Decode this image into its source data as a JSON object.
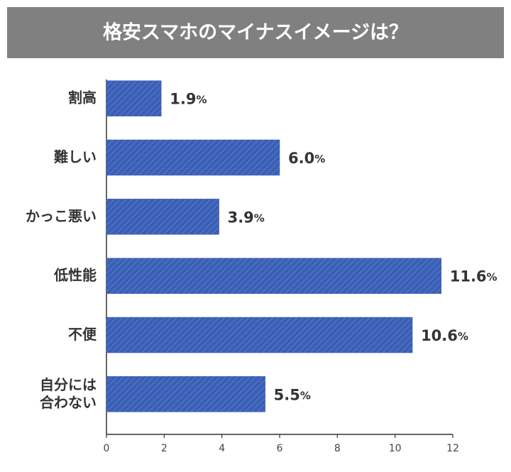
{
  "chart_data": {
    "type": "hbar",
    "title": "格安スマホのマイナスイメージは？",
    "categories": [
      "割高",
      "難しい",
      "かっこ悪い",
      "低性能",
      "不便",
      "自分には\n合わない"
    ],
    "values": [
      1.9,
      6.0,
      3.9,
      11.6,
      10.6,
      5.5
    ],
    "value_labels": [
      "1.9%",
      "6.0%",
      "3.9%",
      "11.6%",
      "10.6%",
      "5.5%"
    ],
    "color": "#3a5fb5",
    "xlim": [
      0,
      12
    ],
    "xticks": [
      0,
      2,
      4,
      6,
      8,
      10,
      12
    ]
  }
}
